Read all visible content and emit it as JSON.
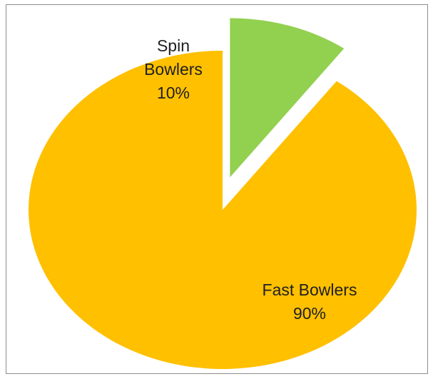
{
  "chart_data": {
    "type": "pie",
    "title": "",
    "exploded": "Spin Bowlers",
    "slices": [
      {
        "label": "Spin Bowlers",
        "value": 10,
        "percent_label": "10%",
        "color": "#92d050"
      },
      {
        "label": "Fast Bowlers",
        "value": 90,
        "percent_label": "90%",
        "color": "#ffc000"
      }
    ]
  }
}
